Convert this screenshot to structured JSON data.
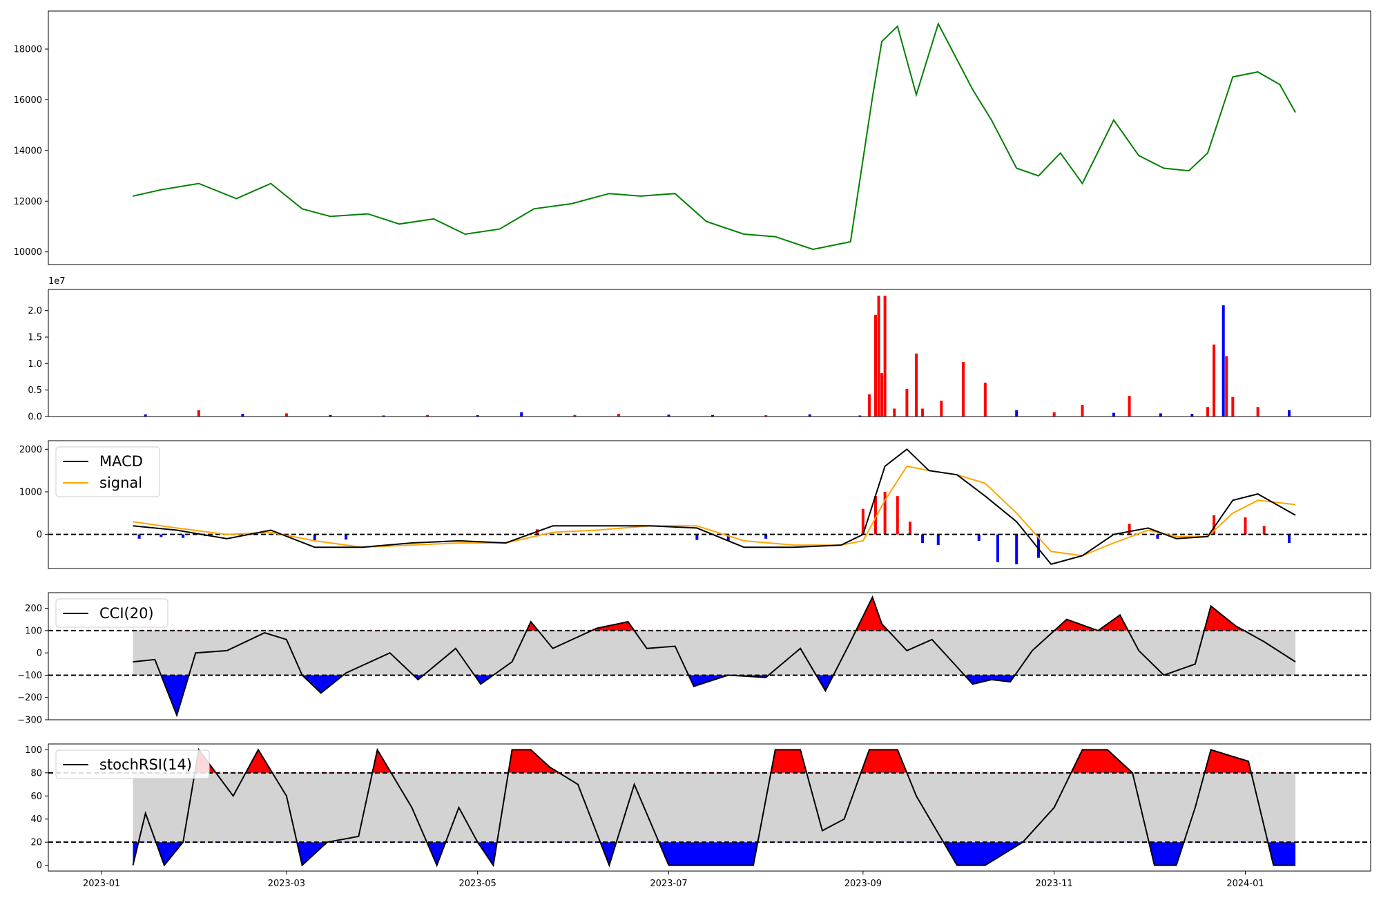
{
  "chart_data": [
    {
      "type": "line",
      "panel": "price",
      "color": "#008000",
      "ylim": [
        9500,
        19500
      ],
      "y_ticks": [
        "10000",
        "12000",
        "14000",
        "16000",
        "18000"
      ],
      "x": [
        "2023-01-11",
        "2023-01-20",
        "2023-02-01",
        "2023-02-13",
        "2023-02-24",
        "2023-03-06",
        "2023-03-15",
        "2023-03-27",
        "2023-04-06",
        "2023-04-17",
        "2023-04-27",
        "2023-05-08",
        "2023-05-19",
        "2023-05-31",
        "2023-06-12",
        "2023-06-22",
        "2023-07-03",
        "2023-07-13",
        "2023-07-25",
        "2023-08-04",
        "2023-08-16",
        "2023-08-28",
        "2023-09-04",
        "2023-09-07",
        "2023-09-12",
        "2023-09-18",
        "2023-09-25",
        "2023-10-06",
        "2023-10-12",
        "2023-10-20",
        "2023-10-27",
        "2023-11-03",
        "2023-11-10",
        "2023-11-20",
        "2023-11-28",
        "2023-12-06",
        "2023-12-14",
        "2023-12-20",
        "2023-12-28",
        "2024-01-05",
        "2024-01-12",
        "2024-01-17"
      ],
      "y": [
        12200,
        12450,
        12700,
        12100,
        12700,
        11700,
        11400,
        11500,
        11100,
        11300,
        10700,
        10900,
        11700,
        11900,
        12300,
        12200,
        12300,
        11200,
        10700,
        10600,
        10100,
        10400,
        16100,
        18300,
        18900,
        16200,
        19000,
        16400,
        15200,
        13300,
        13000,
        13900,
        12700,
        15200,
        13800,
        13300,
        13200,
        13900,
        16900,
        17100,
        16600,
        15500
      ]
    },
    {
      "type": "bar",
      "panel": "volume",
      "ylim": [
        0,
        24000000
      ],
      "y_ticks": [
        "0.0",
        "0.5",
        "1.0",
        "1.5",
        "2.0"
      ],
      "exponent_label": "1e7",
      "colors": {
        "up": "#ff0000",
        "down": "#0000ff"
      },
      "x": [
        "2023-01-15",
        "2023-02-01",
        "2023-02-15",
        "2023-03-01",
        "2023-03-15",
        "2023-04-01",
        "2023-04-15",
        "2023-05-01",
        "2023-05-15",
        "2023-06-01",
        "2023-06-15",
        "2023-07-01",
        "2023-07-15",
        "2023-08-01",
        "2023-08-15",
        "2023-08-31",
        "2023-09-03",
        "2023-09-05",
        "2023-09-06",
        "2023-09-07",
        "2023-09-08",
        "2023-09-11",
        "2023-09-15",
        "2023-09-18",
        "2023-09-20",
        "2023-09-26",
        "2023-10-03",
        "2023-10-10",
        "2023-10-20",
        "2023-11-01",
        "2023-11-10",
        "2023-11-20",
        "2023-11-25",
        "2023-12-05",
        "2023-12-15",
        "2023-12-20",
        "2023-12-22",
        "2023-12-25",
        "2023-12-26",
        "2023-12-28",
        "2024-01-05",
        "2024-01-15"
      ],
      "values": [
        400000,
        1200000,
        500000,
        600000,
        300000,
        200000,
        300000,
        250000,
        800000,
        300000,
        500000,
        350000,
        300000,
        250000,
        400000,
        200000,
        4200000,
        19200000,
        22800000,
        8200000,
        22800000,
        1500000,
        5200000,
        11900000,
        1500000,
        3000000,
        10300000,
        6400000,
        1200000,
        800000,
        2200000,
        700000,
        3900000,
        600000,
        500000,
        1800000,
        13600000,
        21000000,
        11400000,
        3700000,
        1800000,
        1200000
      ],
      "directions": [
        "down",
        "up",
        "down",
        "up",
        "down",
        "down",
        "up",
        "down",
        "down",
        "up",
        "up",
        "down",
        "down",
        "up",
        "down",
        "down",
        "up",
        "up",
        "up",
        "up",
        "up",
        "up",
        "up",
        "up",
        "up",
        "up",
        "up",
        "up",
        "down",
        "up",
        "up",
        "down",
        "up",
        "down",
        "down",
        "up",
        "up",
        "down",
        "up",
        "up",
        "up",
        "down"
      ]
    },
    {
      "type": "line",
      "panel": "macd",
      "ylim": [
        -800,
        2200
      ],
      "y_ticks": [
        "0",
        "1000",
        "2000"
      ],
      "legend": [
        "MACD",
        "signal"
      ],
      "legend_placement": "upper-left",
      "reference_line": 0,
      "x": [
        "2023-01-11",
        "2023-01-25",
        "2023-02-10",
        "2023-02-24",
        "2023-03-10",
        "2023-03-25",
        "2023-04-10",
        "2023-04-25",
        "2023-05-10",
        "2023-05-25",
        "2023-06-08",
        "2023-06-25",
        "2023-07-10",
        "2023-07-25",
        "2023-08-10",
        "2023-08-25",
        "2023-09-01",
        "2023-09-08",
        "2023-09-15",
        "2023-09-22",
        "2023-10-01",
        "2023-10-10",
        "2023-10-20",
        "2023-10-31",
        "2023-11-10",
        "2023-11-20",
        "2023-12-01",
        "2023-12-10",
        "2023-12-20",
        "2023-12-28",
        "2024-01-05",
        "2024-01-17"
      ],
      "series": [
        {
          "name": "MACD",
          "color": "#000000",
          "values": [
            200,
            100,
            -100,
            100,
            -300,
            -300,
            -200,
            -150,
            -200,
            200,
            200,
            200,
            150,
            -300,
            -300,
            -250,
            0,
            1600,
            2000,
            1500,
            1400,
            900,
            300,
            -700,
            -500,
            0,
            150,
            -100,
            -50,
            800,
            950,
            450
          ]
        },
        {
          "name": "signal",
          "color": "#ffa500",
          "values": [
            300,
            150,
            0,
            50,
            -150,
            -300,
            -250,
            -200,
            -200,
            50,
            100,
            200,
            200,
            -150,
            -250,
            -250,
            -150,
            800,
            1600,
            1500,
            1400,
            1200,
            500,
            -400,
            -500,
            -200,
            100,
            -50,
            -50,
            500,
            800,
            700
          ]
        }
      ],
      "histogram": {
        "colors": {
          "pos": "#ff0000",
          "neg": "#0000ff"
        },
        "x": [
          "2023-01-13",
          "2023-01-20",
          "2023-01-27",
          "2023-02-03",
          "2023-03-10",
          "2023-03-20",
          "2023-05-20",
          "2023-07-10",
          "2023-07-20",
          "2023-08-01",
          "2023-09-01",
          "2023-09-05",
          "2023-09-08",
          "2023-09-12",
          "2023-09-16",
          "2023-09-20",
          "2023-09-25",
          "2023-10-08",
          "2023-10-14",
          "2023-10-20",
          "2023-10-27",
          "2023-11-25",
          "2023-12-04",
          "2023-12-22",
          "2024-01-01",
          "2024-01-07",
          "2024-01-15"
        ],
        "values": [
          -100,
          -60,
          -80,
          -40,
          -150,
          -120,
          120,
          -130,
          -150,
          -100,
          600,
          900,
          1000,
          900,
          300,
          -200,
          -250,
          -150,
          -650,
          -700,
          -550,
          250,
          -100,
          450,
          400,
          200,
          -200
        ]
      }
    },
    {
      "type": "area",
      "panel": "cci",
      "ylim": [
        -300,
        270
      ],
      "y_ticks": [
        "−300",
        "−200",
        "−100",
        "0",
        "100",
        "200"
      ],
      "legend": [
        "CCI(20)"
      ],
      "legend_placement": "upper-left",
      "thresholds": [
        -100,
        100
      ],
      "band_color": "#d3d3d3",
      "fill_colors": {
        "above": "#ff0000",
        "below": "#0000ff"
      },
      "x": [
        "2023-01-11",
        "2023-01-18",
        "2023-01-25",
        "2023-01-31",
        "2023-02-10",
        "2023-02-22",
        "2023-03-01",
        "2023-03-06",
        "2023-03-12",
        "2023-03-20",
        "2023-04-03",
        "2023-04-12",
        "2023-04-24",
        "2023-05-02",
        "2023-05-12",
        "2023-05-18",
        "2023-05-25",
        "2023-06-08",
        "2023-06-18",
        "2023-06-24",
        "2023-07-03",
        "2023-07-09",
        "2023-07-20",
        "2023-08-01",
        "2023-08-12",
        "2023-08-20",
        "2023-08-28",
        "2023-09-04",
        "2023-09-07",
        "2023-09-15",
        "2023-09-23",
        "2023-10-06",
        "2023-10-12",
        "2023-10-18",
        "2023-10-25",
        "2023-11-05",
        "2023-11-15",
        "2023-11-22",
        "2023-11-28",
        "2023-12-06",
        "2023-12-16",
        "2023-12-21",
        "2023-12-29",
        "2024-01-07",
        "2024-01-17"
      ],
      "y": [
        -40,
        -30,
        -280,
        0,
        10,
        90,
        60,
        -100,
        -180,
        -90,
        0,
        -120,
        20,
        -140,
        -40,
        140,
        20,
        110,
        140,
        20,
        30,
        -150,
        -100,
        -110,
        20,
        -170,
        50,
        250,
        130,
        10,
        60,
        -140,
        -120,
        -130,
        10,
        150,
        100,
        170,
        10,
        -100,
        -50,
        210,
        120,
        50,
        -40
      ]
    },
    {
      "type": "area",
      "panel": "stochrsi",
      "ylim": [
        -5,
        105
      ],
      "y_ticks": [
        "0",
        "20",
        "40",
        "60",
        "80",
        "100"
      ],
      "legend": [
        "stochRSI(14)"
      ],
      "legend_placement": "upper-left",
      "thresholds": [
        20,
        80
      ],
      "band_color": "#d3d3d3",
      "fill_colors": {
        "above": "#ff0000",
        "below": "#0000ff"
      },
      "x": [
        "2023-01-11",
        "2023-01-15",
        "2023-01-21",
        "2023-01-27",
        "2023-02-01",
        "2023-02-12",
        "2023-02-20",
        "2023-03-01",
        "2023-03-06",
        "2023-03-14",
        "2023-03-24",
        "2023-03-30",
        "2023-04-10",
        "2023-04-18",
        "2023-04-25",
        "2023-05-01",
        "2023-05-06",
        "2023-05-12",
        "2023-05-18",
        "2023-05-24",
        "2023-06-02",
        "2023-06-12",
        "2023-06-20",
        "2023-07-01",
        "2023-07-08",
        "2023-07-22",
        "2023-07-28",
        "2023-08-04",
        "2023-08-12",
        "2023-08-19",
        "2023-08-26",
        "2023-09-03",
        "2023-09-12",
        "2023-09-18",
        "2023-10-01",
        "2023-10-10",
        "2023-10-22",
        "2023-11-01",
        "2023-11-10",
        "2023-11-18",
        "2023-11-26",
        "2023-12-03",
        "2023-12-10",
        "2023-12-16",
        "2023-12-21",
        "2024-01-02",
        "2024-01-10",
        "2024-01-17"
      ],
      "y": [
        0,
        45,
        0,
        20,
        100,
        60,
        100,
        60,
        0,
        20,
        25,
        100,
        50,
        0,
        50,
        20,
        0,
        100,
        100,
        85,
        70,
        0,
        70,
        0,
        0,
        0,
        0,
        100,
        100,
        30,
        40,
        100,
        100,
        60,
        0,
        0,
        20,
        50,
        100,
        100,
        80,
        0,
        0,
        50,
        100,
        90,
        0,
        0
      ]
    },
    {
      "type": "axis",
      "panel": "shared-x",
      "x_ticks": [
        "2023-01",
        "2023-03",
        "2023-05",
        "2023-07",
        "2023-09",
        "2023-11",
        "2024-01"
      ]
    }
  ]
}
